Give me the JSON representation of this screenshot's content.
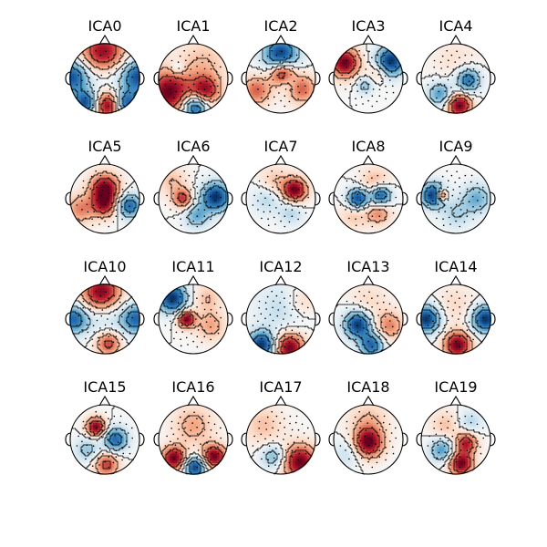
{
  "chart_data": {
    "type": "heatmap",
    "description_kind": "topomap-grid",
    "colormap": [
      "#053061",
      "#2166ac",
      "#4393c3",
      "#92c5de",
      "#d1e5f0",
      "#f7f7f7",
      "#fddbc7",
      "#f4a582",
      "#d6604d",
      "#b2182b",
      "#67001f"
    ],
    "grid": {
      "rows": 4,
      "cols": 5
    },
    "components": [
      {
        "title": "ICA0",
        "blobs": [
          [
            -0.05,
            0.7,
            1.0,
            0.45
          ],
          [
            0.1,
            -0.78,
            1.0,
            0.28
          ],
          [
            -0.95,
            0.05,
            -0.9,
            0.35
          ],
          [
            0.95,
            0.05,
            -0.9,
            0.35
          ],
          [
            -0.55,
            -0.72,
            -0.9,
            0.25
          ],
          [
            0.6,
            -0.72,
            -0.9,
            0.25
          ],
          [
            0.0,
            0.2,
            -0.3,
            0.4
          ]
        ]
      },
      {
        "title": "ICA1",
        "blobs": [
          [
            -0.7,
            -0.4,
            1.0,
            0.45
          ],
          [
            0.35,
            -0.35,
            0.8,
            0.3
          ],
          [
            0.05,
            -0.82,
            -1.0,
            0.25
          ],
          [
            -0.45,
            0.3,
            -0.3,
            0.15
          ],
          [
            0.3,
            0.45,
            0.3,
            0.5
          ]
        ]
      },
      {
        "title": "ICA2",
        "blobs": [
          [
            0.05,
            0.15,
            1.0,
            0.25
          ],
          [
            0.0,
            0.68,
            -1.0,
            0.35
          ],
          [
            -0.7,
            -0.35,
            0.6,
            0.3
          ],
          [
            0.6,
            -0.3,
            0.6,
            0.3
          ],
          [
            0.2,
            -0.1,
            -0.3,
            0.2
          ]
        ]
      },
      {
        "title": "ICA3",
        "blobs": [
          [
            -0.68,
            0.45,
            1.0,
            0.3
          ],
          [
            0.65,
            0.5,
            -1.0,
            0.3
          ],
          [
            0.25,
            0.15,
            0.3,
            0.2
          ],
          [
            -0.1,
            -0.2,
            -0.4,
            0.18
          ]
        ]
      },
      {
        "title": "ICA4",
        "blobs": [
          [
            0.1,
            -0.78,
            1.0,
            0.25
          ],
          [
            0.35,
            -0.05,
            -0.8,
            0.25
          ],
          [
            -0.45,
            -0.45,
            -0.6,
            0.25
          ],
          [
            0.0,
            0.5,
            0.15,
            0.5
          ]
        ]
      },
      {
        "title": "ICA5",
        "blobs": [
          [
            0.0,
            0.3,
            1.0,
            0.3
          ],
          [
            0.0,
            -0.2,
            0.7,
            0.25
          ],
          [
            0.7,
            -0.2,
            -0.8,
            0.25
          ],
          [
            -0.7,
            -0.3,
            0.5,
            0.3
          ]
        ]
      },
      {
        "title": "ICA6",
        "blobs": [
          [
            0.65,
            0.05,
            -1.0,
            0.3
          ],
          [
            -0.3,
            0.0,
            0.7,
            0.2
          ],
          [
            0.1,
            -0.5,
            -0.5,
            0.25
          ],
          [
            -0.6,
            0.5,
            0.3,
            0.3
          ]
        ]
      },
      {
        "title": "ICA7",
        "blobs": [
          [
            0.4,
            0.25,
            1.0,
            0.25
          ],
          [
            -0.4,
            0.0,
            -0.3,
            0.3
          ],
          [
            0.3,
            -0.4,
            -0.3,
            0.25
          ],
          [
            -0.2,
            0.5,
            0.3,
            0.3
          ]
        ]
      },
      {
        "title": "ICA8",
        "blobs": [
          [
            -0.3,
            0.0,
            -1.0,
            0.22
          ],
          [
            0.35,
            0.1,
            -1.0,
            0.22
          ],
          [
            0.2,
            0.45,
            0.4,
            0.3
          ],
          [
            0.3,
            -0.4,
            0.5,
            0.25
          ],
          [
            -0.4,
            -0.45,
            0.3,
            0.3
          ]
        ]
      },
      {
        "title": "ICA9",
        "blobs": [
          [
            -0.4,
            0.1,
            1.0,
            0.12
          ],
          [
            -0.65,
            0.1,
            -1.0,
            0.25
          ],
          [
            0.6,
            0.0,
            -0.5,
            0.3
          ],
          [
            0.0,
            -0.45,
            -0.3,
            0.3
          ]
        ]
      },
      {
        "title": "ICA10",
        "blobs": [
          [
            -0.1,
            0.75,
            1.0,
            0.4
          ],
          [
            -0.9,
            0.0,
            -0.8,
            0.3
          ],
          [
            0.9,
            0.0,
            -0.8,
            0.3
          ],
          [
            0.1,
            -0.7,
            0.7,
            0.25
          ],
          [
            0.0,
            0.1,
            -0.3,
            0.4
          ]
        ]
      },
      {
        "title": "ICA11",
        "blobs": [
          [
            -0.6,
            0.6,
            -1.0,
            0.3
          ],
          [
            -0.2,
            0.0,
            1.0,
            0.18
          ],
          [
            0.5,
            -0.2,
            0.4,
            0.3
          ],
          [
            0.4,
            0.6,
            0.3,
            0.3
          ]
        ]
      },
      {
        "title": "ICA12",
        "blobs": [
          [
            0.25,
            -0.82,
            1.0,
            0.3
          ],
          [
            -0.55,
            -0.75,
            -1.0,
            0.28
          ],
          [
            0.0,
            0.3,
            -0.25,
            0.5
          ],
          [
            0.6,
            0.5,
            0.25,
            0.3
          ]
        ]
      },
      {
        "title": "ICA13",
        "blobs": [
          [
            -0.3,
            -0.15,
            -1.0,
            0.28
          ],
          [
            0.1,
            -0.75,
            -0.8,
            0.25
          ],
          [
            0.6,
            -0.2,
            0.5,
            0.3
          ],
          [
            0.0,
            0.5,
            0.2,
            0.4
          ]
        ]
      },
      {
        "title": "ICA14",
        "blobs": [
          [
            -0.85,
            0.0,
            -1.0,
            0.28
          ],
          [
            0.85,
            0.0,
            -1.0,
            0.28
          ],
          [
            0.05,
            -0.75,
            1.0,
            0.28
          ],
          [
            0.0,
            0.4,
            0.2,
            0.4
          ]
        ]
      },
      {
        "title": "ICA15",
        "blobs": [
          [
            -0.25,
            0.35,
            1.0,
            0.2
          ],
          [
            0.3,
            0.0,
            -0.8,
            0.25
          ],
          [
            0.05,
            -0.72,
            0.7,
            0.25
          ],
          [
            -0.5,
            -0.3,
            -0.4,
            0.25
          ]
        ]
      },
      {
        "title": "ICA16",
        "blobs": [
          [
            -0.55,
            -0.55,
            1.0,
            0.25
          ],
          [
            0.6,
            -0.5,
            1.0,
            0.25
          ],
          [
            0.05,
            -0.8,
            -1.0,
            0.22
          ],
          [
            0.0,
            0.4,
            0.4,
            0.4
          ]
        ]
      },
      {
        "title": "ICA17",
        "blobs": [
          [
            0.55,
            -0.65,
            1.0,
            0.35
          ],
          [
            -0.2,
            -0.5,
            -0.5,
            0.25
          ],
          [
            -0.5,
            0.4,
            0.3,
            0.4
          ]
        ]
      },
      {
        "title": "ICA18",
        "blobs": [
          [
            0.0,
            -0.1,
            1.0,
            0.3
          ],
          [
            0.0,
            0.55,
            0.3,
            0.4
          ],
          [
            -0.6,
            -0.4,
            -0.25,
            0.3
          ]
        ]
      },
      {
        "title": "ICA19",
        "blobs": [
          [
            0.15,
            -0.7,
            1.0,
            0.25
          ],
          [
            0.3,
            -0.1,
            0.8,
            0.22
          ],
          [
            -0.4,
            -0.3,
            -0.6,
            0.25
          ],
          [
            0.4,
            0.5,
            -0.3,
            0.25
          ],
          [
            -0.3,
            0.4,
            0.3,
            0.3
          ]
        ]
      }
    ]
  }
}
